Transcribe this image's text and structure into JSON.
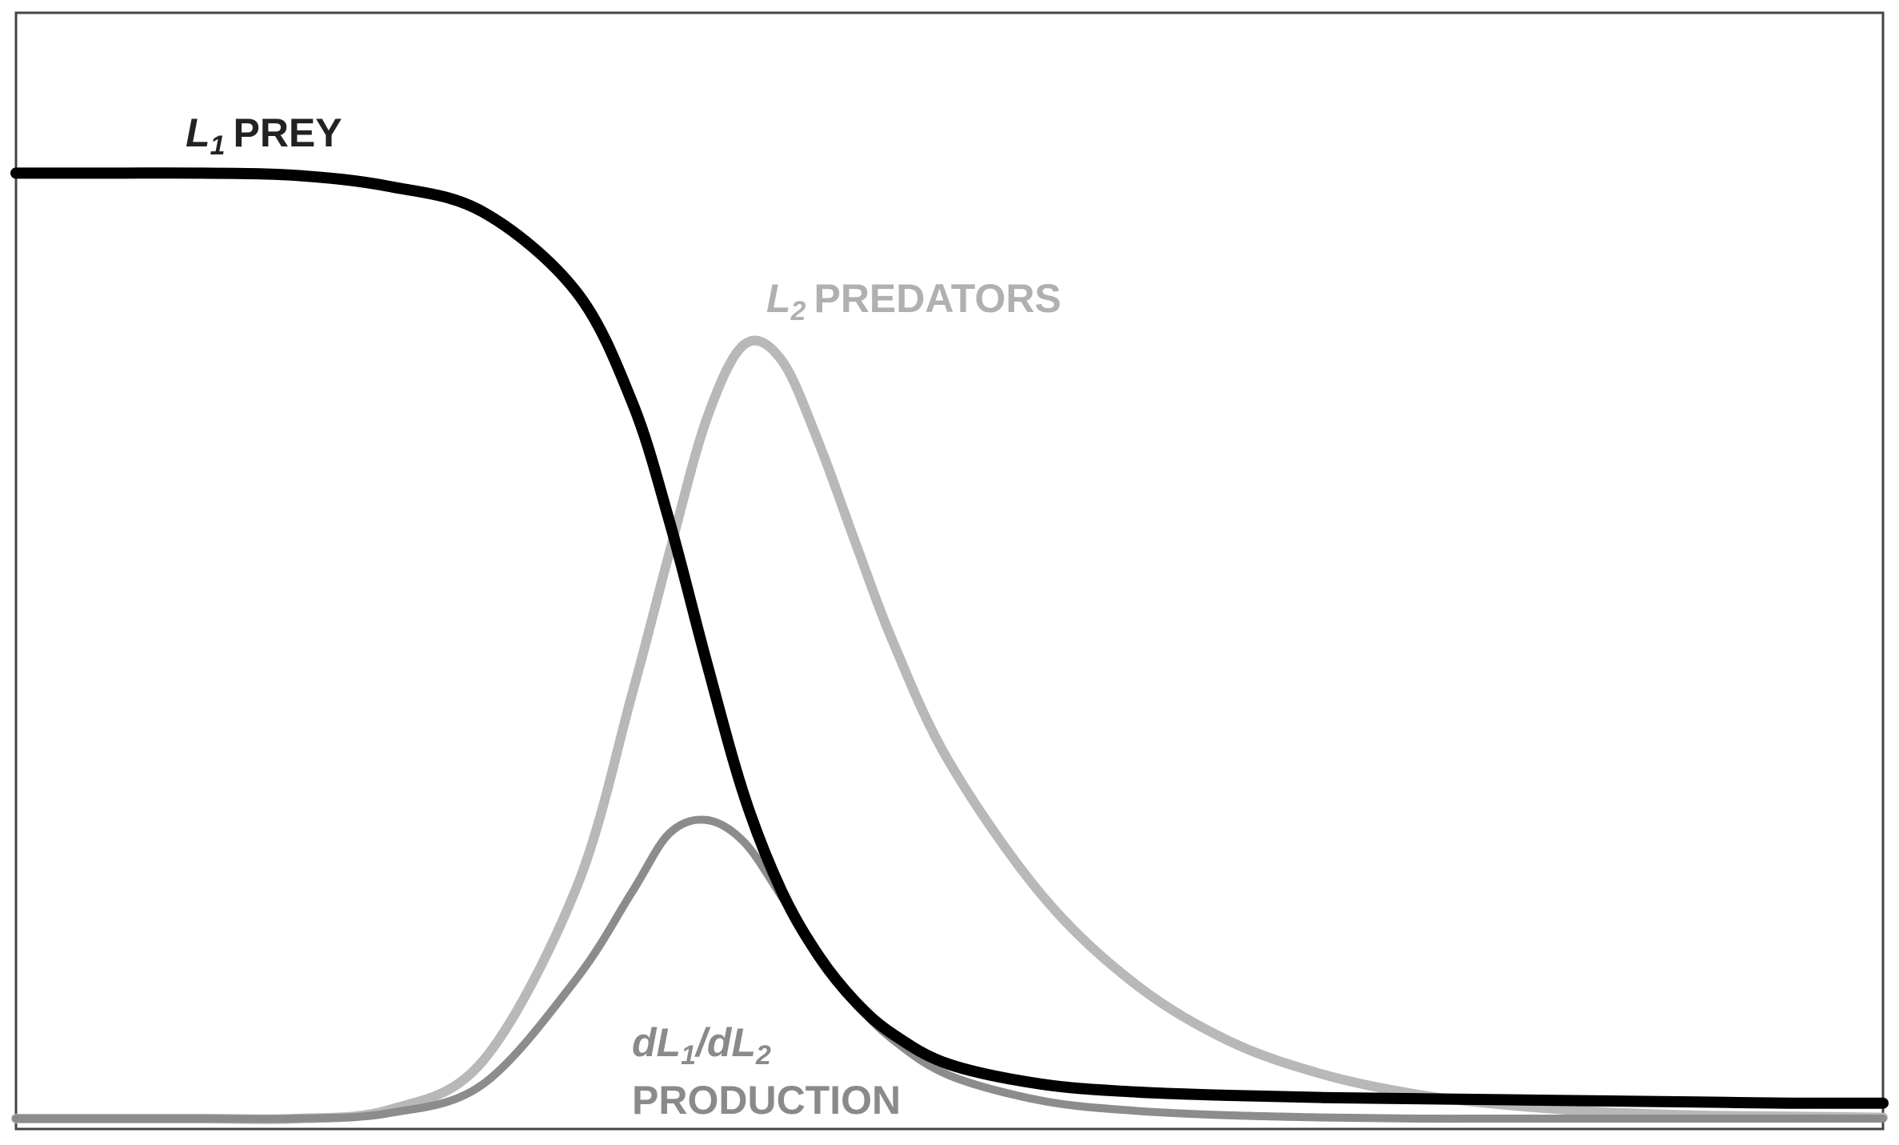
{
  "chart_data": {
    "type": "line",
    "title": "",
    "xlabel": "",
    "ylabel": "",
    "xlim": [
      0,
      100
    ],
    "ylim": [
      0,
      100
    ],
    "grid": false,
    "x": [
      0,
      5,
      10,
      15,
      20,
      25,
      30,
      33,
      35,
      37,
      39,
      41,
      43,
      45,
      47,
      50,
      55,
      60,
      65,
      70,
      75,
      80,
      85,
      90,
      95,
      100
    ],
    "series": [
      {
        "name_prefix": "L",
        "name_subscript": "1",
        "name_suffix": "PREY",
        "color": "#000000",
        "values": [
          85.5,
          85.5,
          85.5,
          85.3,
          84.3,
          82.0,
          74.8,
          64.8,
          54.0,
          41.2,
          29.2,
          20.6,
          14.7,
          10.5,
          7.6,
          4.9,
          3.1,
          2.4,
          2.1,
          1.9,
          1.8,
          1.7,
          1.6,
          1.5,
          1.4,
          1.4
        ]
      },
      {
        "name_prefix": "L",
        "name_subscript": "2",
        "name_suffix": "PREDATORS",
        "color": "#b8b8b8",
        "values": [
          0,
          0,
          0,
          0,
          0.8,
          5.2,
          20.8,
          38.4,
          51.2,
          63.3,
          70.0,
          68.6,
          61.1,
          51.9,
          43.0,
          32.2,
          20.1,
          12.1,
          7.0,
          4.0,
          2.2,
          1.2,
          0.6,
          0.3,
          0.2,
          0.1
        ]
      },
      {
        "name_parts": [
          "dL",
          "1",
          "/dL",
          "2"
        ],
        "name_line2": "PRODUCTION",
        "color": "#8c8c8c",
        "values": [
          0,
          0,
          0,
          0,
          0.5,
          3.1,
          12.6,
          20.5,
          25.8,
          27.0,
          25.0,
          20.1,
          14.8,
          10.4,
          7.1,
          3.9,
          1.6,
          0.7,
          0.3,
          0.1,
          0,
          0,
          0,
          0,
          0,
          0
        ]
      }
    ]
  }
}
